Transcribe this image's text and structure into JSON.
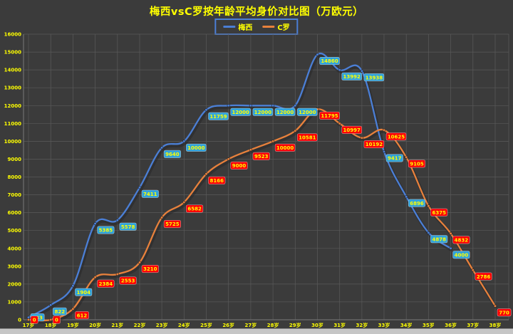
{
  "title": "梅西vsC罗按年龄平均身价对比图（万欧元）",
  "window": {
    "background": "#3b3b3b",
    "bottom_strip_color": "#c6c6c6"
  },
  "chart_data": {
    "type": "line",
    "title": "梅西vsC罗按年龄平均身价对比图（万欧元）",
    "categories": [
      "17岁",
      "18岁",
      "19岁",
      "20岁",
      "21岁",
      "22岁",
      "23岁",
      "24岁",
      "25岁",
      "26岁",
      "27岁",
      "28岁",
      "29岁",
      "30岁",
      "31岁",
      "32岁",
      "33岁",
      "34岁",
      "35岁",
      "36岁",
      "37岁",
      "38岁"
    ],
    "xlabel": "",
    "ylabel": "",
    "ylim": [
      0,
      16000
    ],
    "ytick_step": 1000,
    "grid": true,
    "legend_position": "top-center",
    "axis_text_color": "#ffff00",
    "grid_color": "#5a5a5a",
    "axis_line_color": "#787878",
    "title_color": "#ffff00",
    "legend_border_color": "#4b7fd6",
    "series": [
      {
        "name": "梅西",
        "line_color": "#4b7fd6",
        "label_bg": "#2fa3dc",
        "label_text_color": "#ffff00",
        "values": [
          133,
          822,
          1904,
          5385,
          5578,
          7411,
          9640,
          10000,
          11759,
          12000,
          12000,
          12000,
          12000,
          14860,
          13992,
          13938,
          9417,
          6896,
          4878,
          4000,
          null,
          null
        ]
      },
      {
        "name": "C罗",
        "line_color": "#e8813c",
        "label_bg": "#fb0007",
        "label_text_color": "#ffff00",
        "values": [
          0,
          0,
          612,
          2384,
          2553,
          3210,
          5725,
          6582,
          8166,
          9000,
          9523,
          10000,
          10581,
          11795,
          10997,
          10192,
          10625,
          9105,
          6375,
          4832,
          2786,
          770
        ]
      }
    ]
  }
}
